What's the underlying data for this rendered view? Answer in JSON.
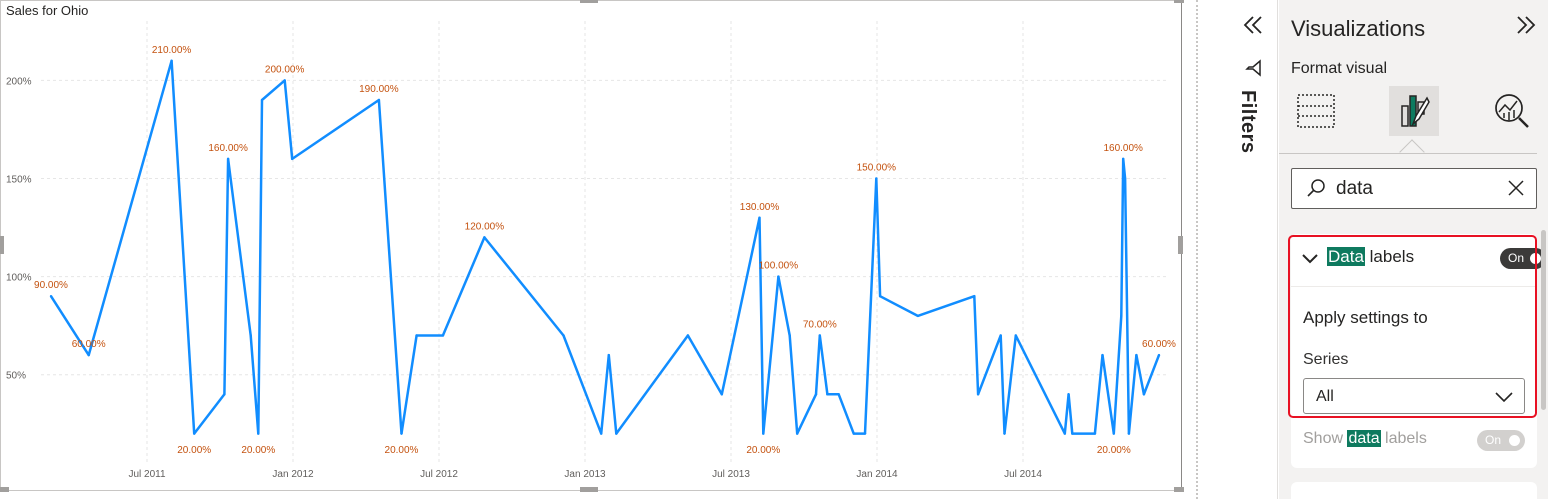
{
  "chart_data": {
    "type": "line",
    "title": "Sales for Ohio",
    "color": "#118dff",
    "label_color": "#c4520f",
    "ylim": [
      5,
      215
    ],
    "y_ticks": [
      {
        "value": 50,
        "label": "50%"
      },
      {
        "value": 100,
        "label": "100%"
      },
      {
        "value": 150,
        "label": "150%"
      },
      {
        "value": 200,
        "label": "200%"
      }
    ],
    "x_ticks": [
      "Jul 2011",
      "Jan 2012",
      "Jul 2012",
      "Jan 2013",
      "Jul 2013",
      "Jan 2014",
      "Jul 2014"
    ],
    "grid": true,
    "points": [
      {
        "x": 0.0,
        "y": 90
      },
      {
        "x": 1.0,
        "y": 60
      },
      {
        "x": 3.2,
        "y": 210
      },
      {
        "x": 3.8,
        "y": 20
      },
      {
        "x": 4.6,
        "y": 40
      },
      {
        "x": 4.7,
        "y": 160
      },
      {
        "x": 5.3,
        "y": 70
      },
      {
        "x": 5.5,
        "y": 20
      },
      {
        "x": 5.6,
        "y": 190
      },
      {
        "x": 6.2,
        "y": 200
      },
      {
        "x": 6.4,
        "y": 160
      },
      {
        "x": 8.7,
        "y": 190
      },
      {
        "x": 9.3,
        "y": 20
      },
      {
        "x": 9.7,
        "y": 70
      },
      {
        "x": 10.4,
        "y": 70
      },
      {
        "x": 11.5,
        "y": 120
      },
      {
        "x": 13.6,
        "y": 70
      },
      {
        "x": 14.6,
        "y": 20
      },
      {
        "x": 14.8,
        "y": 60
      },
      {
        "x": 15.0,
        "y": 20
      },
      {
        "x": 16.9,
        "y": 70
      },
      {
        "x": 17.8,
        "y": 40
      },
      {
        "x": 18.8,
        "y": 130
      },
      {
        "x": 18.9,
        "y": 20
      },
      {
        "x": 19.3,
        "y": 100
      },
      {
        "x": 19.6,
        "y": 70
      },
      {
        "x": 19.8,
        "y": 20
      },
      {
        "x": 20.3,
        "y": 40
      },
      {
        "x": 20.4,
        "y": 70
      },
      {
        "x": 20.6,
        "y": 40
      },
      {
        "x": 20.9,
        "y": 40
      },
      {
        "x": 21.3,
        "y": 20
      },
      {
        "x": 21.6,
        "y": 20
      },
      {
        "x": 21.9,
        "y": 150
      },
      {
        "x": 22.0,
        "y": 90
      },
      {
        "x": 23.0,
        "y": 80
      },
      {
        "x": 24.5,
        "y": 90
      },
      {
        "x": 24.6,
        "y": 40
      },
      {
        "x": 25.2,
        "y": 70
      },
      {
        "x": 25.3,
        "y": 20
      },
      {
        "x": 25.6,
        "y": 70
      },
      {
        "x": 26.9,
        "y": 20
      },
      {
        "x": 27.0,
        "y": 40
      },
      {
        "x": 27.1,
        "y": 20
      },
      {
        "x": 27.7,
        "y": 20
      },
      {
        "x": 27.9,
        "y": 60
      },
      {
        "x": 28.2,
        "y": 20
      },
      {
        "x": 28.4,
        "y": 80
      },
      {
        "x": 28.45,
        "y": 160
      },
      {
        "x": 28.5,
        "y": 150
      },
      {
        "x": 28.6,
        "y": 20
      },
      {
        "x": 28.8,
        "y": 60
      },
      {
        "x": 29.0,
        "y": 40
      },
      {
        "x": 29.4,
        "y": 60
      }
    ],
    "data_labels": [
      {
        "x": 0.0,
        "y": 90,
        "label": "90.00%"
      },
      {
        "x": 1.0,
        "y": 60,
        "label": "60.00%"
      },
      {
        "x": 3.2,
        "y": 210,
        "label": "210.00%"
      },
      {
        "x": 3.8,
        "y": 20,
        "label": "20.00%"
      },
      {
        "x": 4.7,
        "y": 160,
        "label": "160.00%"
      },
      {
        "x": 5.5,
        "y": 20,
        "label": "20.00%"
      },
      {
        "x": 6.2,
        "y": 200,
        "label": "200.00%"
      },
      {
        "x": 8.7,
        "y": 190,
        "label": "190.00%"
      },
      {
        "x": 9.3,
        "y": 20,
        "label": "20.00%"
      },
      {
        "x": 11.5,
        "y": 120,
        "label": "120.00%"
      },
      {
        "x": 18.8,
        "y": 130,
        "label": "130.00%"
      },
      {
        "x": 18.9,
        "y": 20,
        "label": "20.00%"
      },
      {
        "x": 19.3,
        "y": 100,
        "label": "100.00%"
      },
      {
        "x": 20.4,
        "y": 70,
        "label": "70.00%"
      },
      {
        "x": 21.9,
        "y": 150,
        "label": "150.00%"
      },
      {
        "x": 28.45,
        "y": 160,
        "label": "160.00%"
      },
      {
        "x": 28.2,
        "y": 20,
        "label": "20.00%"
      },
      {
        "x": 29.4,
        "y": 60,
        "label": "60.00%"
      }
    ]
  },
  "filters": {
    "label": "Filters",
    "collapse_icon": "double-chevron-left",
    "funnel_icon": "filter-funnel"
  },
  "viz_pane": {
    "title": "Visualizations",
    "expand_icon": "double-chevron-right",
    "subtitle": "Format visual",
    "tabs": [
      "build-visual-icon",
      "format-visual-icon",
      "analytics-icon"
    ],
    "active_tab": "format-visual-icon",
    "search": {
      "value": "data",
      "placeholder": ""
    },
    "data_labels": {
      "title_highlight": "Data",
      "title_rest": " labels",
      "toggle_label": "On",
      "apply_heading": "Apply settings to",
      "series_label": "Series",
      "series_value": "All",
      "show_prefix": "Show ",
      "show_highlight": "data",
      "show_suffix": " labels",
      "show_toggle_label": "On"
    },
    "highlight_color": "#0e7a5f",
    "annotation_color": "#e81123"
  }
}
